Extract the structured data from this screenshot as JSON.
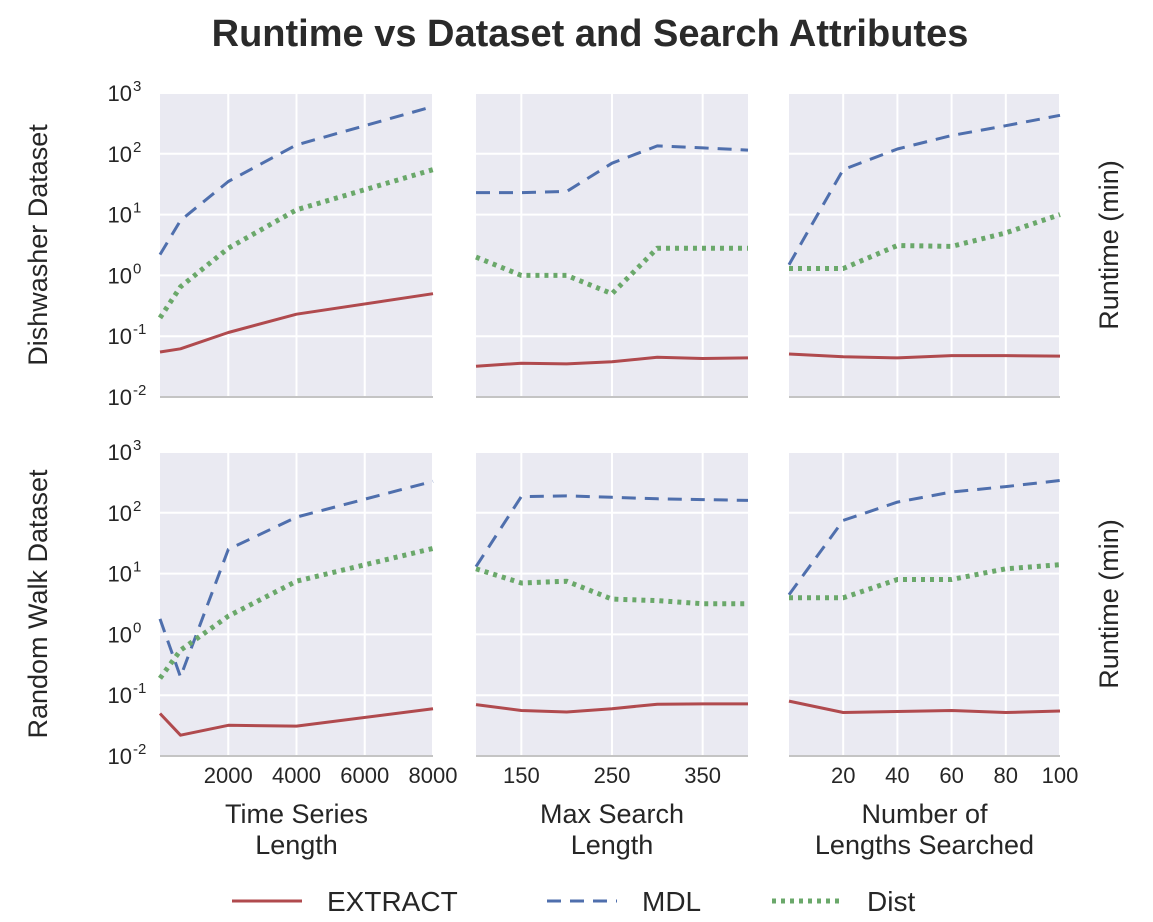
{
  "chart_data": {
    "type": "line",
    "title": "Runtime vs Dataset and Search Attributes",
    "yscale": "log",
    "ylim": [
      0.01,
      1000
    ],
    "ytick_labels": [
      {
        "base": "10",
        "exp": "-2"
      },
      {
        "base": "10",
        "exp": "-1"
      },
      {
        "base": "10",
        "exp": "0"
      },
      {
        "base": "10",
        "exp": "1"
      },
      {
        "base": "10",
        "exp": "2"
      },
      {
        "base": "10",
        "exp": "3"
      }
    ],
    "row_labels": [
      "Dishwasher Dataset",
      "Random Walk Dataset"
    ],
    "right_labels": [
      "Runtime (min)",
      "Runtime (min)"
    ],
    "columns": [
      {
        "xlabel_lines": [
          "Time Series",
          "Length"
        ],
        "xlim": [
          0,
          8000
        ],
        "xticks": [
          2000,
          4000,
          6000,
          8000
        ],
        "xtick_labels": [
          "2000",
          "4000",
          "6000",
          "8000"
        ]
      },
      {
        "xlabel_lines": [
          "Max Search",
          "Length"
        ],
        "xlim": [
          100,
          400
        ],
        "xticks": [
          150,
          250,
          350
        ],
        "xtick_labels": [
          "150",
          "250",
          "350"
        ]
      },
      {
        "xlabel_lines": [
          "Number of",
          "Lengths Searched"
        ],
        "xlim": [
          0,
          100
        ],
        "xticks": [
          20,
          40,
          60,
          80,
          100
        ],
        "xtick_labels": [
          "20",
          "40",
          "60",
          "80",
          "100"
        ]
      }
    ],
    "legend": [
      {
        "name": "EXTRACT",
        "color": "#b04a4e",
        "style": "solid"
      },
      {
        "name": "MDL",
        "color": "#4f6fad",
        "style": "dashed"
      },
      {
        "name": "Dist",
        "color": "#6aa86a",
        "style": "dotted"
      }
    ],
    "panels": [
      {
        "row": 0,
        "col": 0,
        "series": [
          {
            "name": "EXTRACT",
            "x": [
              0,
              600,
              2000,
              4000,
              8000
            ],
            "y": [
              0.055,
              0.062,
              0.115,
              0.23,
              0.5
            ]
          },
          {
            "name": "MDL",
            "x": [
              0,
              600,
              2000,
              4000,
              8000
            ],
            "y": [
              2.2,
              8,
              35,
              140,
              600
            ]
          },
          {
            "name": "Dist",
            "x": [
              0,
              600,
              2000,
              4000,
              8000
            ],
            "y": [
              0.2,
              0.65,
              2.8,
              12,
              55
            ]
          }
        ]
      },
      {
        "row": 0,
        "col": 1,
        "series": [
          {
            "name": "EXTRACT",
            "x": [
              100,
              150,
              200,
              250,
              300,
              350,
              400
            ],
            "y": [
              0.032,
              0.036,
              0.035,
              0.038,
              0.045,
              0.043,
              0.044
            ]
          },
          {
            "name": "MDL",
            "x": [
              100,
              150,
              200,
              250,
              300,
              350,
              400
            ],
            "y": [
              23,
              23,
              24,
              70,
              135,
              125,
              115
            ]
          },
          {
            "name": "Dist",
            "x": [
              100,
              150,
              200,
              250,
              300,
              350,
              400
            ],
            "y": [
              2.0,
              1.0,
              1.0,
              0.5,
              2.8,
              2.8,
              2.8
            ]
          }
        ]
      },
      {
        "row": 0,
        "col": 2,
        "series": [
          {
            "name": "EXTRACT",
            "x": [
              0,
              20,
              40,
              60,
              80,
              100
            ],
            "y": [
              0.051,
              0.046,
              0.044,
              0.048,
              0.048,
              0.047
            ]
          },
          {
            "name": "MDL",
            "x": [
              0,
              20,
              40,
              60,
              80,
              100
            ],
            "y": [
              1.5,
              55,
              120,
              200,
              290,
              430
            ]
          },
          {
            "name": "Dist",
            "x": [
              0,
              20,
              40,
              60,
              80,
              100
            ],
            "y": [
              1.3,
              1.3,
              3.1,
              3.0,
              5.0,
              10
            ]
          }
        ]
      },
      {
        "row": 1,
        "col": 0,
        "series": [
          {
            "name": "EXTRACT",
            "x": [
              0,
              600,
              2000,
              4000,
              8000
            ],
            "y": [
              0.05,
              0.022,
              0.032,
              0.031,
              0.06
            ]
          },
          {
            "name": "MDL",
            "x": [
              0,
              600,
              2000,
              4000,
              8000
            ],
            "y": [
              1.8,
              0.2,
              25,
              85,
              330
            ]
          },
          {
            "name": "Dist",
            "x": [
              0,
              600,
              2000,
              4000,
              8000
            ],
            "y": [
              0.19,
              0.55,
              2.0,
              7.5,
              26
            ]
          }
        ]
      },
      {
        "row": 1,
        "col": 1,
        "series": [
          {
            "name": "EXTRACT",
            "x": [
              100,
              150,
              200,
              250,
              300,
              350,
              400
            ],
            "y": [
              0.07,
              0.056,
              0.053,
              0.06,
              0.071,
              0.072,
              0.072
            ]
          },
          {
            "name": "MDL",
            "x": [
              100,
              150,
              200,
              250,
              300,
              350,
              400
            ],
            "y": [
              13,
              185,
              190,
              180,
              170,
              165,
              160
            ]
          },
          {
            "name": "Dist",
            "x": [
              100,
              150,
              200,
              250,
              300,
              350,
              400
            ],
            "y": [
              12,
              7,
              7.5,
              3.8,
              3.6,
              3.2,
              3.2
            ]
          }
        ]
      },
      {
        "row": 1,
        "col": 2,
        "series": [
          {
            "name": "EXTRACT",
            "x": [
              0,
              20,
              40,
              60,
              80,
              100
            ],
            "y": [
              0.08,
              0.052,
              0.054,
              0.056,
              0.052,
              0.055
            ]
          },
          {
            "name": "MDL",
            "x": [
              0,
              20,
              40,
              60,
              80,
              100
            ],
            "y": [
              4.5,
              75,
              150,
              220,
              270,
              340
            ]
          },
          {
            "name": "Dist",
            "x": [
              0,
              20,
              40,
              60,
              80,
              100
            ],
            "y": [
              4.0,
              4.0,
              8.0,
              8.0,
              12,
              14
            ]
          }
        ]
      }
    ]
  }
}
